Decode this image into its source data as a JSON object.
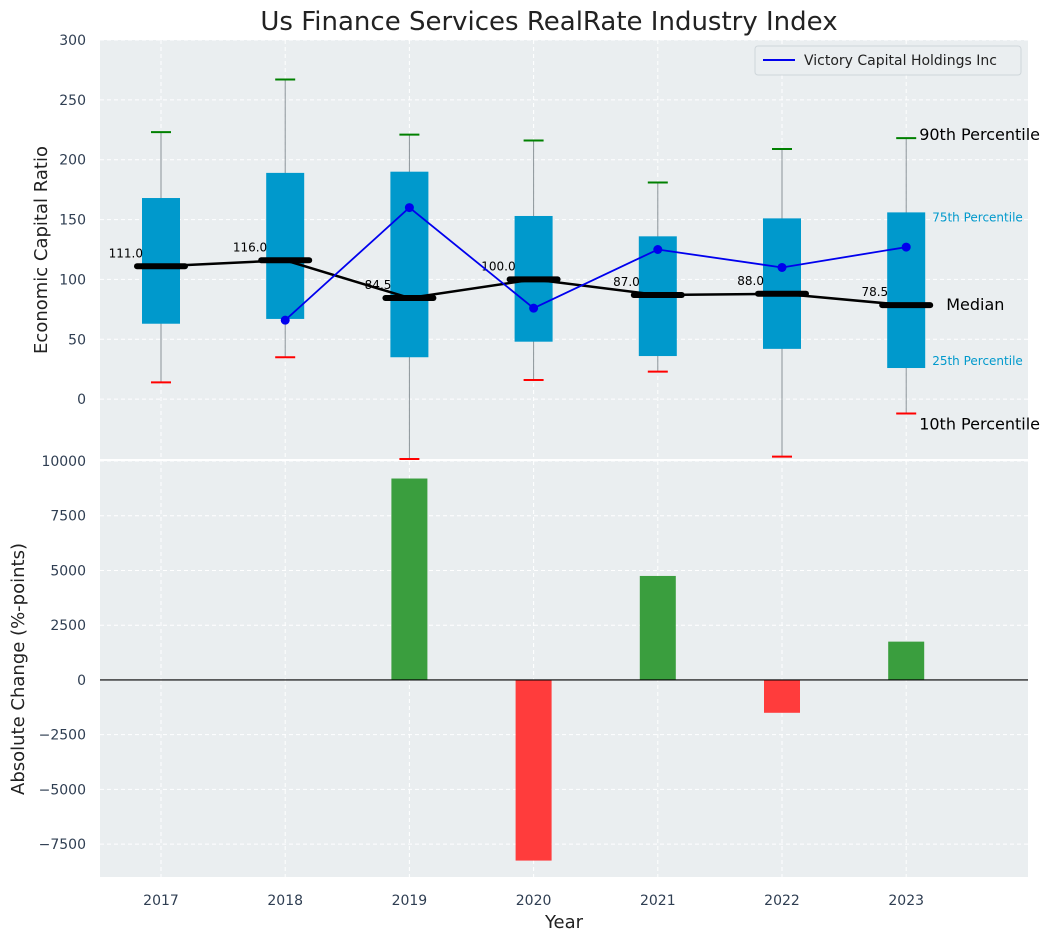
{
  "chart_data": [
    {
      "type": "box",
      "title": "Us Finance Services RealRate Industry Index",
      "ylabel": "Economic Capital Ratio",
      "ylim": [
        -50,
        300
      ],
      "yticks": [
        0,
        50,
        100,
        150,
        200,
        250,
        300
      ],
      "categories": [
        "2017",
        "2018",
        "2019",
        "2020",
        "2021",
        "2022",
        "2023"
      ],
      "p10": [
        14,
        35,
        -50,
        16,
        23,
        -48,
        -12
      ],
      "p25": [
        63,
        67,
        35,
        48,
        36,
        42,
        26
      ],
      "median": [
        111.0,
        116.0,
        84.5,
        100.0,
        87.0,
        88.0,
        78.5
      ],
      "p75": [
        168,
        189,
        190,
        153,
        136,
        151,
        156
      ],
      "p90": [
        223,
        267,
        221,
        216,
        181,
        209,
        218
      ],
      "series": [
        {
          "name": "Victory Capital Holdings Inc",
          "values": [
            null,
            66,
            160,
            76,
            125,
            110,
            127
          ],
          "color": "#0000ee"
        }
      ],
      "annotations": {
        "p90": "90th Percentile",
        "p75": "75th Percentile",
        "median": "Median",
        "p25": "25th Percentile",
        "p10": "10th Percentile"
      },
      "legend": "top-right",
      "grid": true,
      "colors": {
        "box": "#0099cc",
        "median": "#000000",
        "p90_cap": "#008000",
        "p10_cap": "#ff0000"
      }
    },
    {
      "type": "bar",
      "ylabel": "Absolute Change (%-points)",
      "xlabel": "Year",
      "ylim": [
        -9000,
        10000
      ],
      "yticks": [
        -7500,
        -5000,
        -2500,
        0,
        2500,
        5000,
        7500,
        10000
      ],
      "ytick_labels": [
        "−7500",
        "−5000",
        "−2500",
        "0",
        "2500",
        "5000",
        "7500",
        "10000"
      ],
      "categories": [
        "2017",
        "2018",
        "2019",
        "2020",
        "2021",
        "2022",
        "2023"
      ],
      "values": [
        null,
        null,
        9200,
        -8250,
        4750,
        -1500,
        1750
      ],
      "grid": true,
      "colors": {
        "positive": "#3a9e3e",
        "negative": "#ff3c3c"
      }
    }
  ]
}
